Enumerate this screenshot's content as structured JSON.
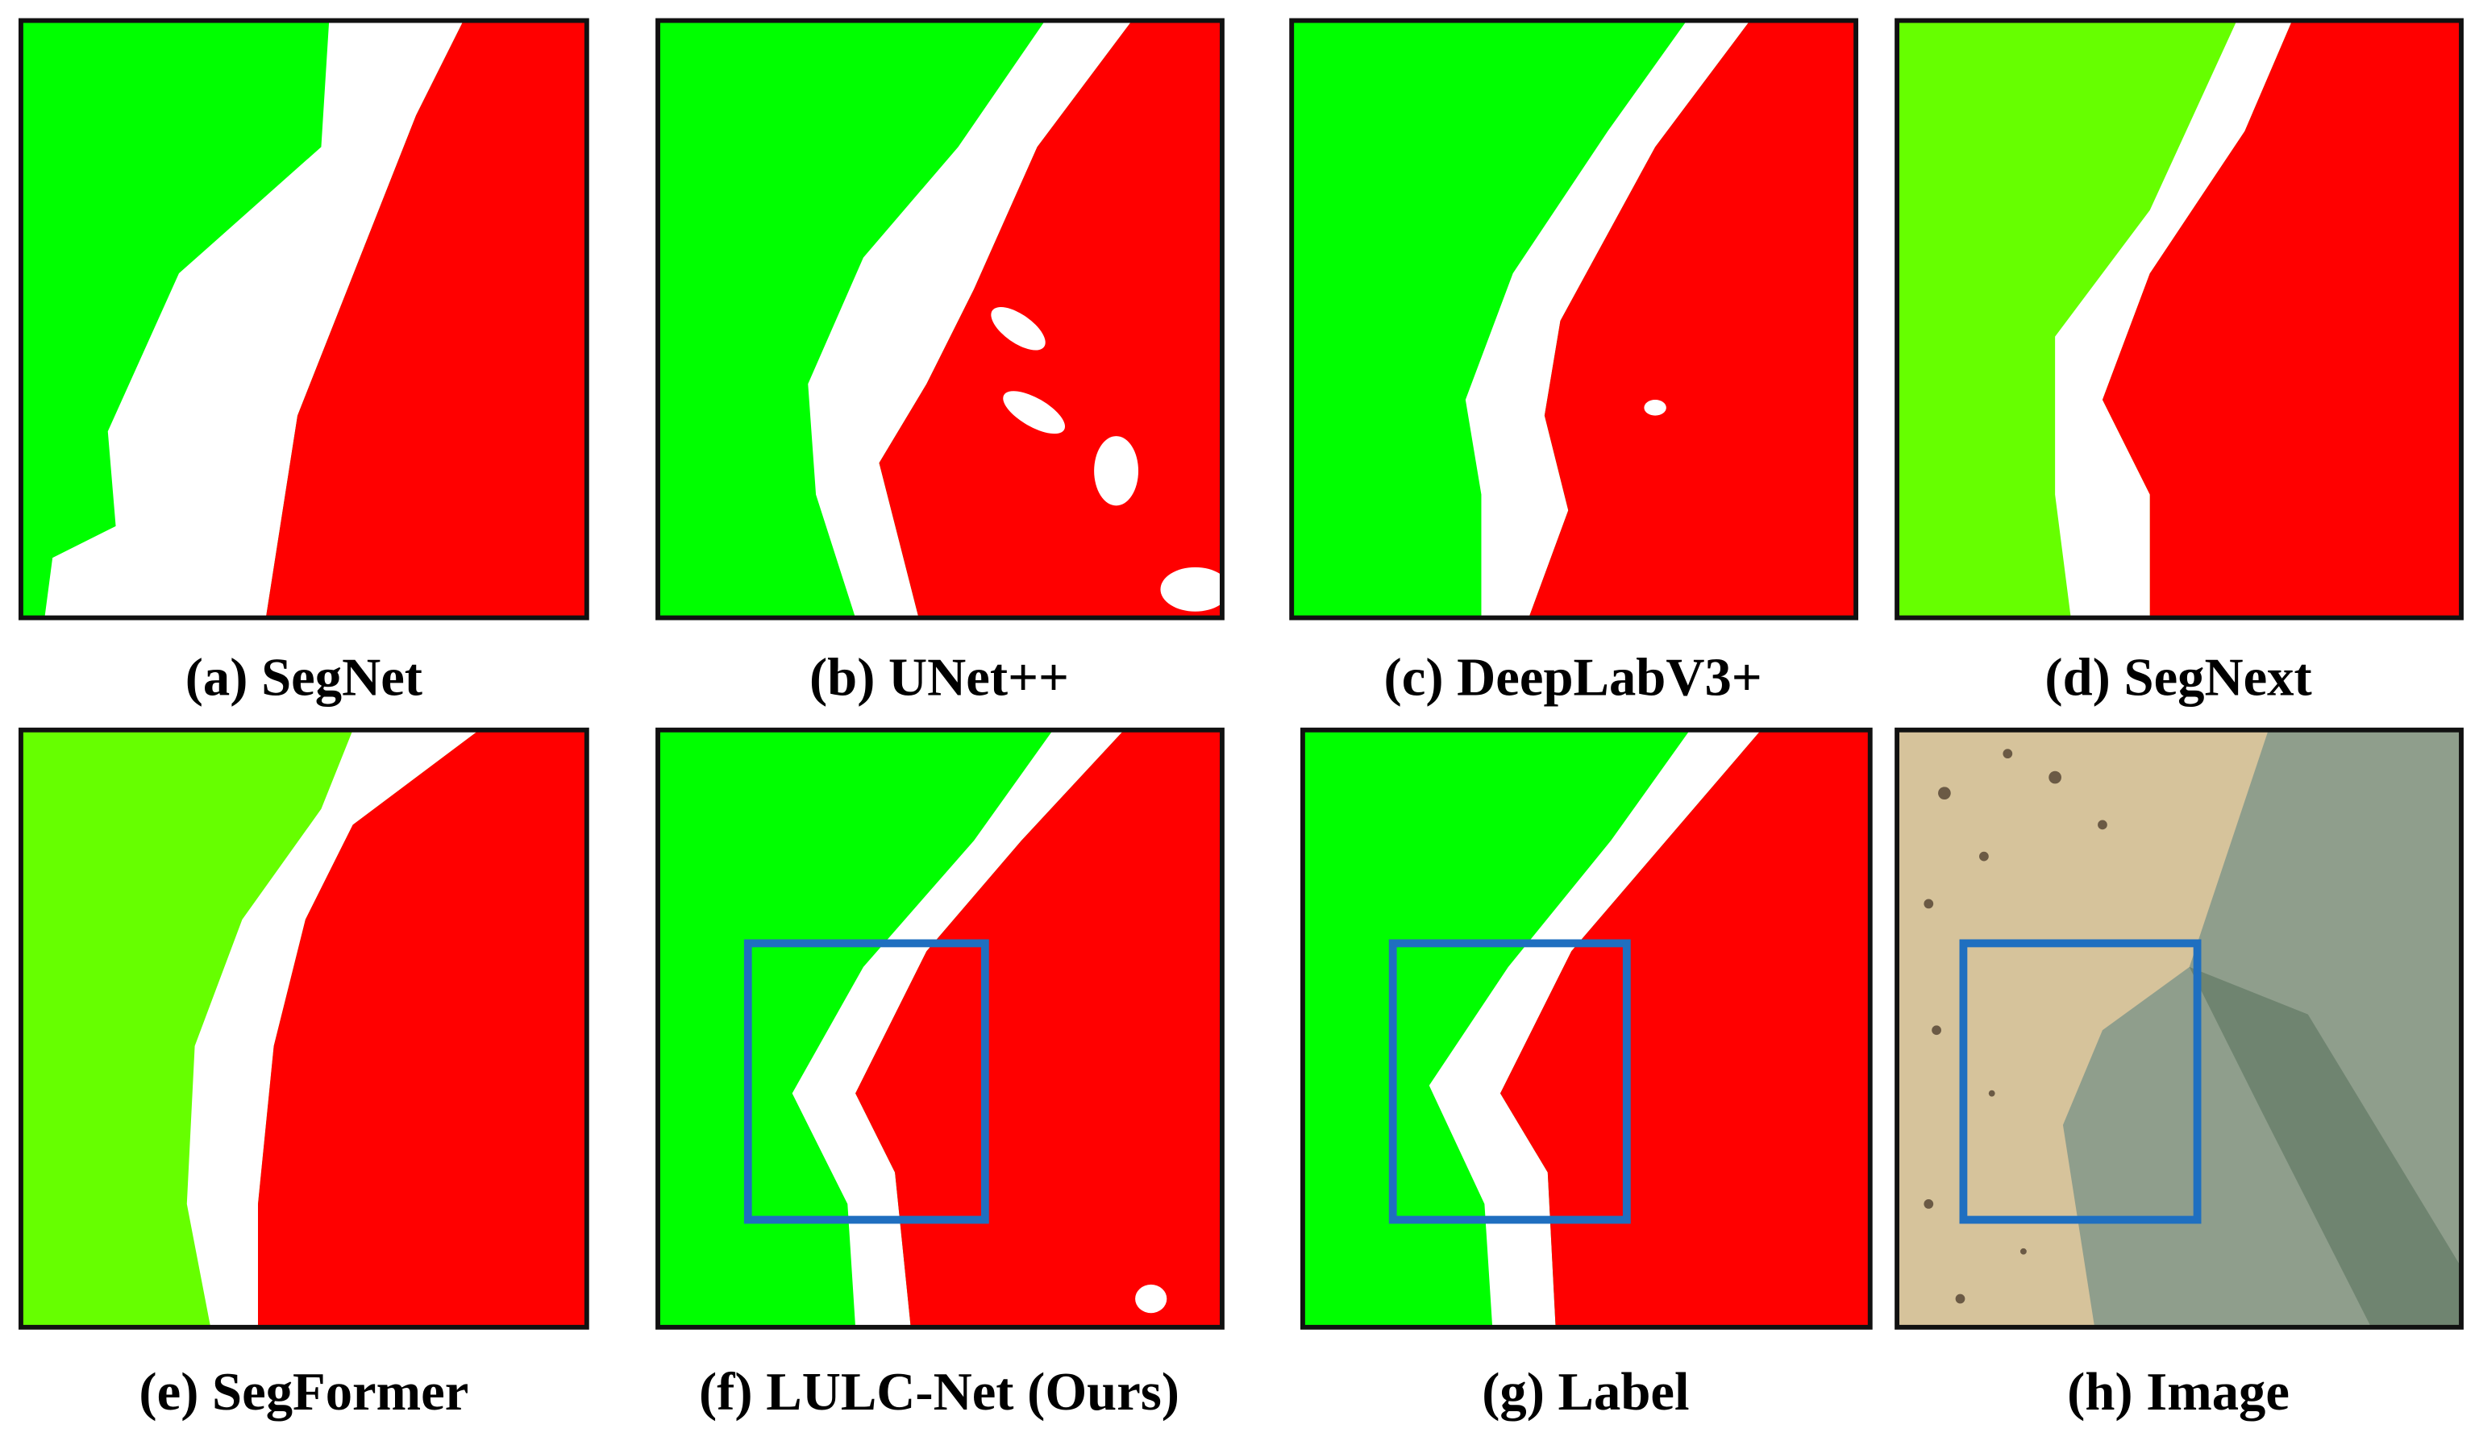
{
  "panels": [
    {
      "caption": "(a) SegNet"
    },
    {
      "caption": "(b) UNet++"
    },
    {
      "caption": "(c) DeepLabV3+"
    },
    {
      "caption": "(d) SegNext"
    },
    {
      "caption": "(e) SegFormer"
    },
    {
      "caption": "(f) LULC-Net (Ours)"
    },
    {
      "caption": "(g) Label"
    },
    {
      "caption": "(h) Image"
    }
  ]
}
